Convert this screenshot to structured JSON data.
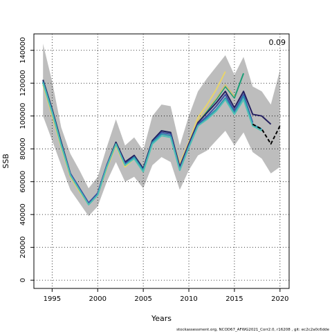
{
  "chart_data": {
    "type": "line",
    "xlabel": "Years",
    "ylabel": "SSB",
    "annotation": "0.09",
    "footer": "stockassessment.org, NCOD67_AFWG2021_Corr2.0, r16208 , git: ec2c2a0c6dde",
    "xlim": [
      1993,
      2021
    ],
    "ylim": [
      -5000,
      150000
    ],
    "x_ticks": [
      1995,
      2000,
      2005,
      2010,
      2015,
      2020
    ],
    "y_ticks": [
      0,
      20000,
      40000,
      60000,
      80000,
      100000,
      120000,
      140000
    ],
    "grid": true,
    "confidence_band": {
      "x": [
        1994,
        1995,
        1996,
        1997,
        1998,
        1999,
        2000,
        2001,
        2002,
        2003,
        2004,
        2005,
        2006,
        2007,
        2008,
        2009,
        2010,
        2011,
        2012,
        2013,
        2014,
        2015,
        2016,
        2017,
        2018,
        2019,
        2020
      ],
      "upper": [
        144000,
        121000,
        93000,
        77000,
        67000,
        56000,
        63000,
        81000,
        98000,
        82000,
        87000,
        79000,
        100000,
        107000,
        106000,
        82000,
        100000,
        115000,
        123000,
        130000,
        137000,
        125000,
        136000,
        118000,
        115000,
        107000,
        128000
      ],
      "lower": [
        100000,
        85000,
        70000,
        55000,
        47000,
        39000,
        45000,
        60000,
        72000,
        60000,
        63000,
        56000,
        70000,
        75000,
        72000,
        55000,
        67000,
        76000,
        79000,
        85000,
        91000,
        82000,
        90000,
        78000,
        74000,
        65000,
        69000
      ]
    },
    "series": [
      {
        "color": "#1b9e77",
        "x": [
          1994,
          1995,
          1996,
          1997,
          1998,
          1999,
          2000,
          2001,
          2002,
          2003,
          2004,
          2005,
          2006,
          2007,
          2008,
          2009,
          2010,
          2011,
          2012,
          2013,
          2014,
          2015,
          2016
        ],
        "values": [
          122000,
          104000,
          84000,
          65000,
          56000,
          47000,
          53000,
          70000,
          84000,
          71000,
          76000,
          68000,
          85000,
          91000,
          90000,
          69000,
          83000,
          97000,
          103000,
          110000,
          118000,
          111000,
          126000
        ]
      },
      {
        "color": "#e8d46a",
        "x": [
          1994,
          1995,
          1996,
          1997,
          1998,
          1999,
          2000,
          2001,
          2002,
          2003,
          2004,
          2005,
          2006,
          2007,
          2008,
          2009,
          2010,
          2011,
          2012,
          2013,
          2014
        ],
        "values": [
          119000,
          100000,
          81000,
          63000,
          54000,
          46000,
          52000,
          68000,
          82000,
          69000,
          74000,
          66000,
          83000,
          90000,
          89000,
          71000,
          84000,
          99000,
          107000,
          116000,
          127000
        ]
      },
      {
        "color": "#cfc07c",
        "x": [
          1994,
          1995,
          1996,
          1997,
          1998,
          1999,
          2000,
          2001,
          2002,
          2003,
          2004,
          2005,
          2006,
          2007,
          2008,
          2009,
          2010,
          2011,
          2012,
          2013,
          2014,
          2015
        ],
        "values": [
          120000,
          101000,
          82000,
          64000,
          55000,
          47000,
          52000,
          69000,
          83000,
          70000,
          75000,
          67000,
          84000,
          90000,
          89000,
          70000,
          83000,
          97000,
          104000,
          111000,
          119000,
          112000
        ]
      },
      {
        "color": "#231f5f",
        "x": [
          1994,
          1995,
          1996,
          1997,
          1998,
          1999,
          2000,
          2001,
          2002,
          2003,
          2004,
          2005,
          2006,
          2007,
          2008,
          2009,
          2010,
          2011,
          2012,
          2013,
          2014,
          2015,
          2016,
          2017,
          2018,
          2019
        ],
        "values": [
          122000,
          104000,
          84000,
          65000,
          56000,
          47000,
          53000,
          70000,
          84000,
          72000,
          76000,
          68000,
          85000,
          91000,
          90000,
          69000,
          83000,
          96000,
          102000,
          108000,
          115000,
          105000,
          115000,
          101000,
          100000,
          95000
        ]
      },
      {
        "color": "#3b4fa8",
        "x": [
          1994,
          1995,
          1996,
          1997,
          1998,
          1999,
          2000,
          2001,
          2002,
          2003,
          2004,
          2005,
          2006,
          2007,
          2008,
          2009,
          2010,
          2011,
          2012,
          2013,
          2014,
          2015,
          2016,
          2017
        ],
        "values": [
          121000,
          103000,
          83000,
          65000,
          56000,
          47000,
          53000,
          70000,
          83000,
          71000,
          75000,
          67000,
          84000,
          90000,
          89000,
          68000,
          82000,
          95000,
          100000,
          106000,
          113000,
          103000,
          113000,
          96000
        ]
      },
      {
        "color": "#2a8fb0",
        "x": [
          1994,
          1995,
          1996,
          1997,
          1998,
          1999,
          2000,
          2001,
          2002,
          2003,
          2004,
          2005,
          2006,
          2007,
          2008,
          2009,
          2010,
          2011,
          2012,
          2013,
          2014,
          2015,
          2016,
          2017,
          2018
        ],
        "values": [
          121000,
          103000,
          83000,
          64000,
          55000,
          46000,
          52000,
          69000,
          83000,
          70000,
          75000,
          67000,
          84000,
          89000,
          88000,
          67000,
          81000,
          94000,
          99000,
          104000,
          111000,
          102000,
          112000,
          95000,
          92000
        ]
      },
      {
        "color": "#4fc0b5",
        "x": [
          1994,
          1995,
          1996,
          1997,
          1998,
          1999,
          2000,
          2001,
          2002,
          2003,
          2004,
          2005,
          2006,
          2007,
          2008,
          2009,
          2010,
          2011,
          2012,
          2013,
          2014,
          2015,
          2016,
          2017,
          2018
        ],
        "values": [
          120000,
          102000,
          82000,
          64000,
          55000,
          46000,
          52000,
          69000,
          83000,
          70000,
          74000,
          66000,
          83000,
          88000,
          87000,
          67000,
          81000,
          94000,
          98000,
          103000,
          110000,
          101000,
          110000,
          94000,
          91000
        ]
      },
      {
        "color": "#000000",
        "dashed": true,
        "x": [
          2017,
          2018,
          2019,
          2020
        ],
        "values": [
          95000,
          92000,
          83000,
          94000
        ]
      }
    ]
  }
}
